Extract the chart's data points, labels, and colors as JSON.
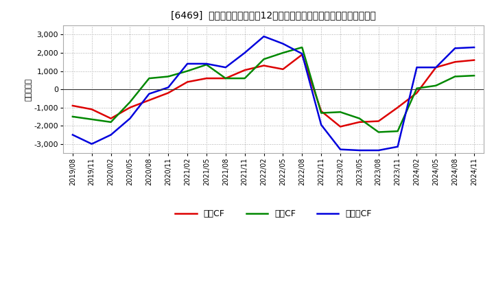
{
  "title": "[6469]  キャッシュフローの12か月移動合計の対前年同期増減額の推移",
  "ylabel": "（百万円）",
  "background_color": "#ffffff",
  "plot_bg_color": "#ffffff",
  "grid_color": "#aaaaaa",
  "xlabels": [
    "2019/08",
    "2019/11",
    "2020/02",
    "2020/05",
    "2020/08",
    "2020/11",
    "2021/02",
    "2021/05",
    "2021/08",
    "2021/11",
    "2022/02",
    "2022/05",
    "2022/08",
    "2022/11",
    "2023/02",
    "2023/05",
    "2023/08",
    "2023/11",
    "2024/02",
    "2024/05",
    "2024/08",
    "2024/11"
  ],
  "operating_cf": [
    -900,
    -1100,
    -1600,
    -1000,
    -600,
    -200,
    400,
    600,
    600,
    1050,
    1300,
    1100,
    1900,
    -1200,
    -2050,
    -1800,
    -1750,
    -1000,
    -200,
    1200,
    1500,
    1600
  ],
  "investing_cf": [
    -1500,
    -1650,
    -1800,
    -700,
    600,
    700,
    1000,
    1350,
    600,
    600,
    1650,
    2000,
    2300,
    -1300,
    -1250,
    -1600,
    -2350,
    -2300,
    50,
    200,
    700,
    750
  ],
  "free_cf": [
    -2500,
    -3000,
    -2500,
    -1600,
    -250,
    100,
    1400,
    1400,
    1200,
    2000,
    2900,
    2500,
    1950,
    -1950,
    -3300,
    -3350,
    -3350,
    -3150,
    1200,
    1200,
    2250,
    2300
  ],
  "ylim": [
    -3500,
    3500
  ],
  "yticks": [
    -3000,
    -2000,
    -1000,
    0,
    1000,
    2000,
    3000
  ],
  "operating_color": "#dd0000",
  "investing_color": "#008800",
  "free_color": "#0000dd",
  "legend_labels": [
    "営業CF",
    "投資CF",
    "フリーCF"
  ],
  "line_width": 1.8
}
